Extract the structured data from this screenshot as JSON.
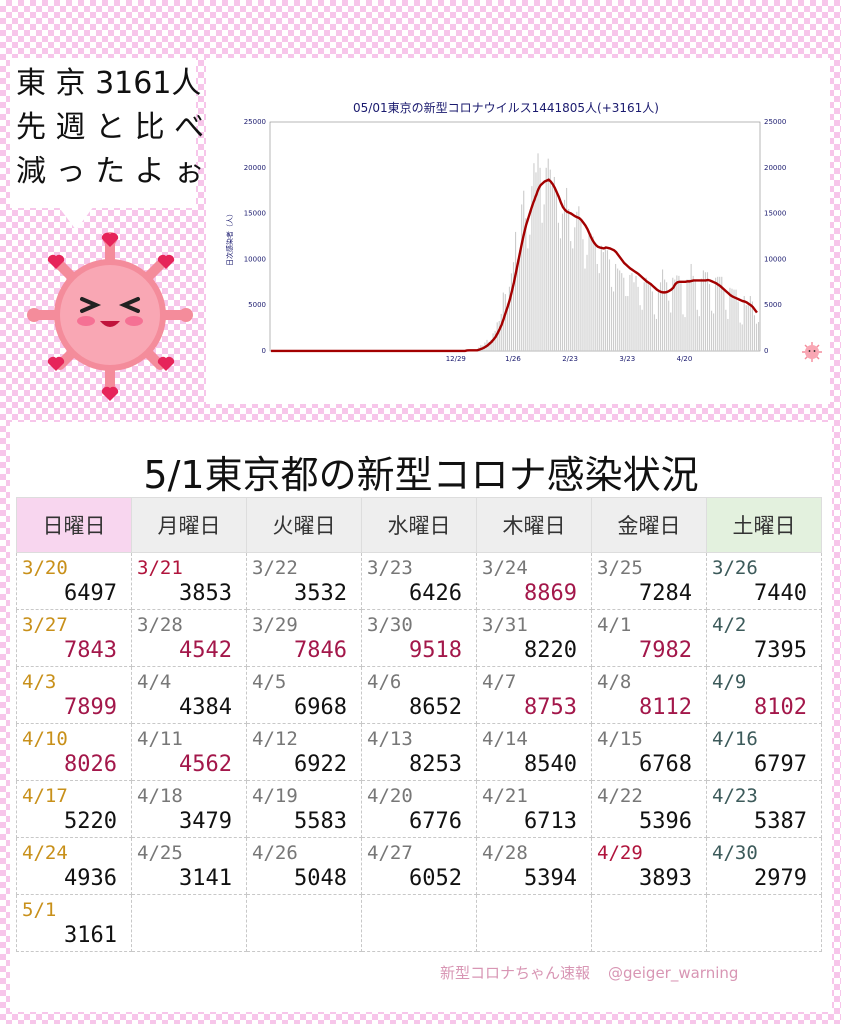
{
  "speech": {
    "lines": [
      "東 京 3161人",
      "先 週 と 比 べ",
      "減 っ た よ ぉ"
    ]
  },
  "chart_data": {
    "type": "bar",
    "title": "05/01東京の新型コロナウイルス1441805人(+3161人)",
    "ylabel": "日次感染者（人）",
    "ylim": [
      0,
      25000
    ],
    "yticks": [
      0,
      5000,
      10000,
      15000,
      20000,
      25000
    ],
    "xticks": [
      "12/29",
      "1/26",
      "2/23",
      "3/23",
      "4/20"
    ],
    "series": [
      {
        "kind": "daily_bars",
        "values": [
          0,
          0,
          0,
          0,
          0,
          0,
          0,
          0,
          0,
          0,
          0,
          0,
          0,
          0,
          0,
          0,
          0,
          0,
          0,
          0,
          0,
          0,
          0,
          0,
          0,
          0,
          0,
          0,
          0,
          0,
          0,
          0,
          0,
          0,
          0,
          0,
          0,
          0,
          0,
          0,
          0,
          0,
          0,
          0,
          0,
          0,
          0,
          0,
          0,
          0,
          0,
          0,
          0,
          0,
          0,
          0,
          0,
          0,
          0,
          0,
          0,
          0,
          0,
          0,
          0,
          0,
          0,
          0,
          0,
          0,
          0,
          0,
          0,
          0,
          0,
          0,
          0,
          0,
          0,
          0,
          0,
          0,
          0,
          0,
          0,
          0,
          0,
          0,
          0,
          0,
          0,
          0,
          0,
          0,
          0,
          0,
          76,
          78,
          103,
          64,
          41,
          82,
          390,
          641,
          600,
          922,
          1214,
          1001,
          1224,
          1926,
          2198,
          3124,
          3277,
          4051,
          6384,
          6214,
          5185,
          7016,
          8475,
          9699,
          13000,
          10000,
          11000,
          16000,
          17500,
          14500,
          11200,
          12700,
          18000,
          20500,
          19500,
          21576,
          20000,
          14000,
          16000,
          20000,
          21000,
          19800,
          18000,
          19000,
          17500,
          14000,
          12300,
          15000,
          16500,
          17800,
          15500,
          12000,
          11200,
          13500,
          15200,
          15800,
          14500,
          12200,
          9000,
          10500,
          13000,
          12800,
          12500,
          11800,
          9500,
          8500,
          11500,
          10800,
          11200,
          11000,
          10000,
          7000,
          6500,
          9500,
          9000,
          8800,
          8500,
          8000,
          6000,
          6000,
          8300,
          8500,
          7500,
          8200,
          7000,
          5000,
          4500,
          7500,
          8000,
          7300,
          7200,
          6500,
          4000,
          3500,
          6500,
          7500,
          8900,
          7800,
          7500,
          5500,
          4200,
          8000,
          7800,
          8250,
          8200,
          7400,
          4000,
          3700,
          7800,
          7800,
          9500,
          8200,
          7800,
          4500,
          3800,
          7900,
          8800,
          8600,
          8600,
          7300,
          4400,
          4100,
          8000,
          8100,
          8100,
          8100,
          6800,
          4500,
          3500,
          6900,
          6800,
          6700,
          6700,
          5400,
          3100,
          2900,
          6000,
          5000,
          5000,
          6000,
          5400,
          3900,
          2979,
          3161
        ]
      },
      {
        "kind": "weekly_average_line",
        "values": [
          10,
          10,
          10,
          10,
          10,
          10,
          10,
          10,
          10,
          10,
          10,
          10,
          10,
          10,
          10,
          10,
          10,
          10,
          10,
          10,
          10,
          10,
          10,
          10,
          10,
          10,
          10,
          10,
          10,
          10,
          10,
          10,
          10,
          10,
          10,
          10,
          10,
          10,
          10,
          10,
          10,
          10,
          10,
          10,
          10,
          10,
          10,
          10,
          10,
          10,
          10,
          10,
          10,
          10,
          10,
          10,
          10,
          10,
          10,
          10,
          10,
          10,
          10,
          10,
          10,
          10,
          10,
          10,
          10,
          10,
          10,
          10,
          10,
          10,
          10,
          10,
          10,
          10,
          10,
          10,
          10,
          10,
          10,
          10,
          10,
          10,
          10,
          10,
          10,
          10,
          10,
          10,
          10,
          10,
          10,
          10,
          60,
          70,
          72,
          72,
          74,
          75,
          150,
          230,
          320,
          450,
          600,
          800,
          1000,
          1250,
          1550,
          1950,
          2400,
          2900,
          3550,
          4250,
          4900,
          5650,
          6550,
          7500,
          8600,
          9700,
          10800,
          11900,
          12900,
          13800,
          14500,
          15200,
          15900,
          16500,
          17100,
          17700,
          18100,
          18300,
          18500,
          18600,
          18700,
          18500,
          18200,
          17800,
          17300,
          16800,
          16200,
          15700,
          15400,
          15200,
          15100,
          15000,
          14850,
          14700,
          14600,
          14500,
          14300,
          14000,
          13700,
          13300,
          12800,
          12300,
          11900,
          11600,
          11400,
          11300,
          11250,
          11200,
          11300,
          11250,
          11200,
          11100,
          11000,
          10800,
          10500,
          10200,
          9900,
          9600,
          9400,
          9200,
          9000,
          8850,
          8700,
          8550,
          8400,
          8200,
          8000,
          7800,
          7600,
          7450,
          7300,
          7100,
          6900,
          6700,
          6550,
          6450,
          6400,
          6400,
          6450,
          6550,
          6700,
          6900,
          7300,
          7500,
          7550,
          7550,
          7550,
          7550,
          7600,
          7600,
          7650,
          7700,
          7700,
          7700,
          7700,
          7700,
          7700,
          7700,
          7750,
          7700,
          7600,
          7500,
          7400,
          7250,
          7100,
          6900,
          6700,
          6500,
          6300,
          6100,
          5950,
          5850,
          5750,
          5650,
          5550,
          5450,
          5400,
          5300,
          5150,
          5000,
          4800,
          4500,
          4200
        ]
      }
    ]
  },
  "table": {
    "title": "5/1東京都の新型コロナ感染状況",
    "headers": [
      "日曜日",
      "月曜日",
      "火曜日",
      "水曜日",
      "木曜日",
      "金曜日",
      "土曜日"
    ],
    "rows": [
      [
        {
          "d": "3/20",
          "v": "6497"
        },
        {
          "d": "3/21",
          "v": "3853"
        },
        {
          "d": "3/22",
          "v": "3532"
        },
        {
          "d": "3/23",
          "v": "6426"
        },
        {
          "d": "3/24",
          "v": "8869"
        },
        {
          "d": "3/25",
          "v": "7284"
        },
        {
          "d": "3/26",
          "v": "7440"
        }
      ],
      [
        {
          "d": "3/27",
          "v": "7843"
        },
        {
          "d": "3/28",
          "v": "4542"
        },
        {
          "d": "3/29",
          "v": "7846"
        },
        {
          "d": "3/30",
          "v": "9518"
        },
        {
          "d": "3/31",
          "v": "8220"
        },
        {
          "d": "4/1",
          "v": "7982"
        },
        {
          "d": "4/2",
          "v": "7395"
        }
      ],
      [
        {
          "d": "4/3",
          "v": "7899"
        },
        {
          "d": "4/4",
          "v": "4384"
        },
        {
          "d": "4/5",
          "v": "6968"
        },
        {
          "d": "4/6",
          "v": "8652"
        },
        {
          "d": "4/7",
          "v": "8753"
        },
        {
          "d": "4/8",
          "v": "8112"
        },
        {
          "d": "4/9",
          "v": "8102"
        }
      ],
      [
        {
          "d": "4/10",
          "v": "8026"
        },
        {
          "d": "4/11",
          "v": "4562"
        },
        {
          "d": "4/12",
          "v": "6922"
        },
        {
          "d": "4/13",
          "v": "8253"
        },
        {
          "d": "4/14",
          "v": "8540"
        },
        {
          "d": "4/15",
          "v": "6768"
        },
        {
          "d": "4/16",
          "v": "6797"
        }
      ],
      [
        {
          "d": "4/17",
          "v": "5220"
        },
        {
          "d": "4/18",
          "v": "3479"
        },
        {
          "d": "4/19",
          "v": "5583"
        },
        {
          "d": "4/20",
          "v": "6776"
        },
        {
          "d": "4/21",
          "v": "6713"
        },
        {
          "d": "4/22",
          "v": "5396"
        },
        {
          "d": "4/23",
          "v": "5387"
        }
      ],
      [
        {
          "d": "4/24",
          "v": "4936"
        },
        {
          "d": "4/25",
          "v": "3141"
        },
        {
          "d": "4/26",
          "v": "5048"
        },
        {
          "d": "4/27",
          "v": "6052"
        },
        {
          "d": "4/28",
          "v": "5394"
        },
        {
          "d": "4/29",
          "v": "3893"
        },
        {
          "d": "4/30",
          "v": "2979"
        }
      ],
      [
        {
          "d": "5/1",
          "v": "3161"
        },
        null,
        null,
        null,
        null,
        null,
        null
      ]
    ],
    "highlighted_values": [
      "8869",
      "7843",
      "4542",
      "7846",
      "9518",
      "7982",
      "7899",
      "8753",
      "8112",
      "8102",
      "8026",
      "4562"
    ],
    "holiday_dates": [
      "3/21",
      "4/29"
    ]
  },
  "credit": {
    "left": "新型コロナちゃん速報",
    "right": "@geiger_warning"
  },
  "colors": {
    "bars": "#cccccc",
    "line": "#a30000",
    "accent_value": "#a3174a",
    "pink_bg": "#f7c6ea",
    "mascot": "#f48c9b"
  },
  "icons": [
    "corona-mascot-icon",
    "small-mascot-icon",
    "heart-icon"
  ]
}
